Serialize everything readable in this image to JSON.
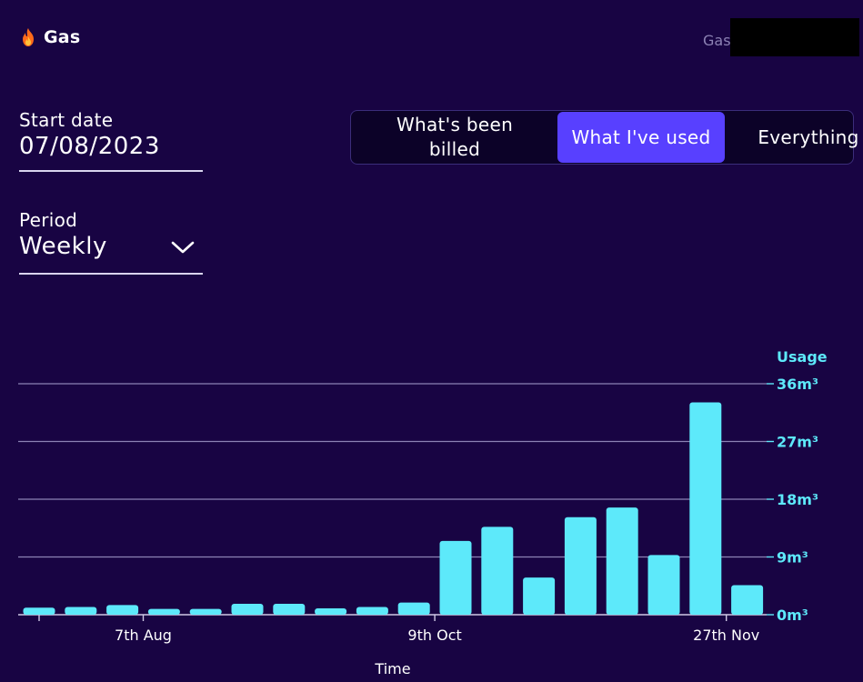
{
  "header": {
    "title": "Gas",
    "icon": "flame-icon"
  },
  "account": {
    "label": "Gas"
  },
  "start_date": {
    "label": "Start date",
    "value": "07/08/2023"
  },
  "period": {
    "label": "Period",
    "value": "Weekly",
    "icon": "chevron-down-icon"
  },
  "view_toggle": {
    "options": [
      {
        "label": "What's been billed",
        "selected": false
      },
      {
        "label": "What I've used",
        "selected": true
      },
      {
        "label": "Everything",
        "selected": false
      }
    ],
    "selected_color": "#5840ff"
  },
  "colors": {
    "background": "#180443",
    "bar": "#5de9fa",
    "gridline": "#8c82b4"
  },
  "chart_data": {
    "type": "bar",
    "ylabel": "Usage",
    "xlabel": "Time",
    "ylim": [
      0,
      36
    ],
    "yticks": [
      "36m³",
      "27m³",
      "18m³",
      "9m³",
      "0m³"
    ],
    "ytick_values": [
      36,
      27,
      18,
      9,
      0
    ],
    "xticks": [
      {
        "label": "7th Aug",
        "index": 2.5
      },
      {
        "label": "9th Oct",
        "index": 9.5
      },
      {
        "label": "27th Nov",
        "index": 16.5
      }
    ],
    "values": [
      1.1,
      1.2,
      1.5,
      0.9,
      0.9,
      1.7,
      1.7,
      1.0,
      1.2,
      1.9,
      11.5,
      13.7,
      5.8,
      15.2,
      16.7,
      9.3,
      33.1,
      4.6
    ],
    "grid": true
  }
}
